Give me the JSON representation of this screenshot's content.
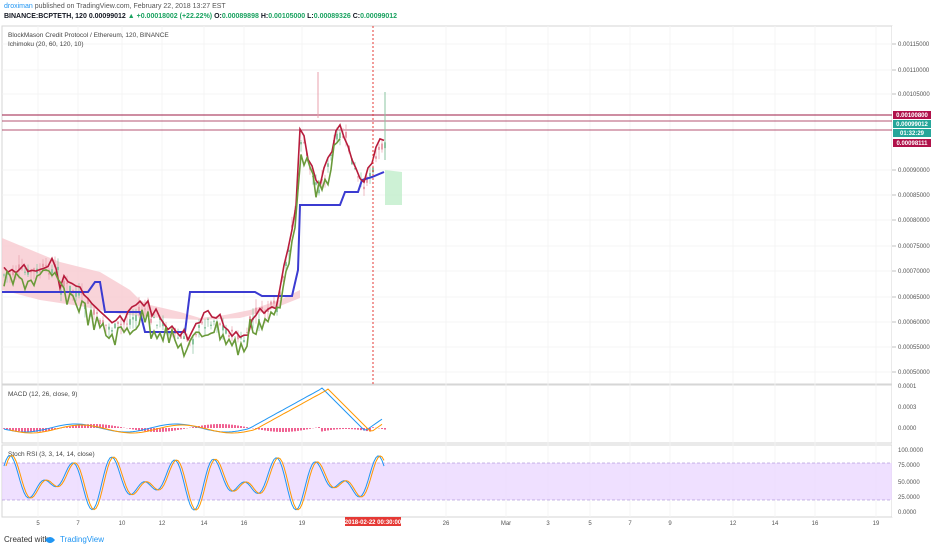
{
  "header": {
    "author": "droximan",
    "published": "published on TradingView.com, February 22, 2018 13:27 EST",
    "symbol": "BINANCE:BCPTETH, 120",
    "last": "0.00099012",
    "change": "▲ +0.00018002 (+22.22%)",
    "o_label": "O:",
    "o": "0.00089898",
    "h_label": "H:",
    "h": "0.00105000",
    "l_label": "L:",
    "l": "0.00089326",
    "c_label": "C:",
    "c": "0.00099012"
  },
  "main_pane": {
    "title": "BlockMason Credit Protocol / Ethereum, 120, BINANCE",
    "indicator": "Ichimoku (20, 60, 120, 10)",
    "price_ticks": [
      "0.00115000",
      "0.00110000",
      "0.00105000",
      "0.00090000",
      "0.00085000",
      "0.00080000",
      "0.00075000",
      "0.00070000",
      "0.00065000",
      "0.00060000",
      "0.00055000",
      "0.00050000"
    ],
    "tags": [
      {
        "text": "0.00100800",
        "color": "#b0124a"
      },
      {
        "text": "0.00099012",
        "color": "#26a69a"
      },
      {
        "text": "01:32:29",
        "color": "#26a69a"
      },
      {
        "text": "0.00098111",
        "color": "#b0124a"
      }
    ]
  },
  "macd_pane": {
    "label": "MACD (12, 26, close, 9)",
    "ticks": [
      "0.0001",
      "0.0003",
      "0.0000"
    ]
  },
  "rsi_pane": {
    "label": "Stoch RSI (3, 3, 14, 14, close)",
    "ticks": [
      "100.0000",
      "75.0000",
      "50.0000",
      "25.0000",
      "0.0000"
    ],
    "band_color": "#e1c7ff"
  },
  "time_axis": {
    "labels": [
      "5",
      "7",
      "10",
      "12",
      "14",
      "16",
      "19",
      "26",
      "Mar",
      "3",
      "5",
      "7",
      "9",
      "12",
      "14",
      "16",
      "19"
    ],
    "cursor_label": "2018-02-22 00:30:00"
  },
  "footer": {
    "created": "Created with",
    "brand": "TradingView"
  },
  "colors": {
    "tenkan": "#b71c3c",
    "kijun": "#3b3bd1",
    "chikou": "#6a9a3a",
    "cloud_bear": "#f8c9cf",
    "cloud_bull": "#c8f0d0",
    "macd": "#2196f3",
    "signal": "#ff9800",
    "hist": "#e91e63",
    "cursor": "#e53935"
  }
}
